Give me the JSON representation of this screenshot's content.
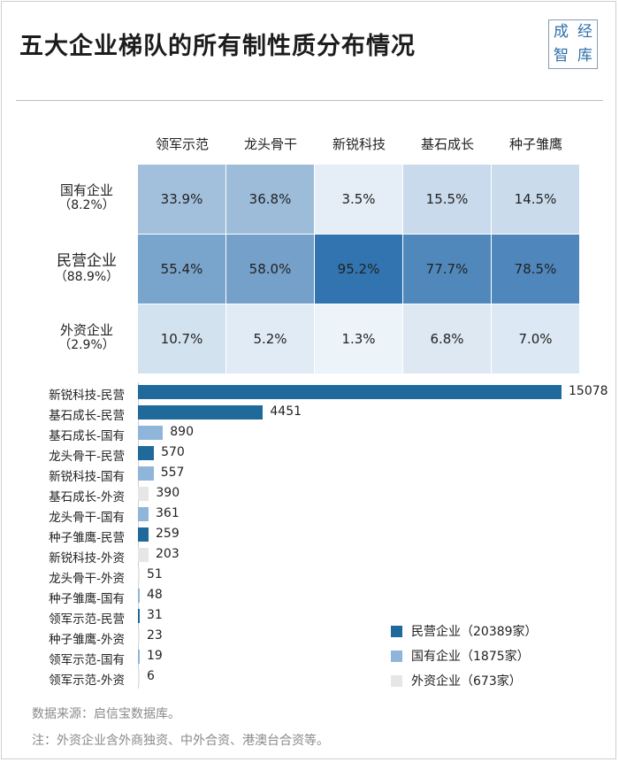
{
  "title": "五大企业梯队的所有制性质分布情况",
  "logo": {
    "chars": [
      "成",
      "经",
      "智",
      "库"
    ]
  },
  "colors": {
    "private": "#1f6a9a",
    "state": "#8fb6da",
    "foreign": "#e6e6e6",
    "heat_low": "#f1f6fb",
    "heat_high": "#2a6ead"
  },
  "chart_data": [
    {
      "type": "heatmap",
      "columns": [
        "领军示范",
        "龙头骨干",
        "新锐科技",
        "基石成长",
        "种子雏鹰"
      ],
      "rows": [
        {
          "name": "国有企业",
          "share": "（8.2%）",
          "values": [
            33.9,
            36.8,
            3.5,
            15.5,
            14.5
          ],
          "labels": [
            "33.9%",
            "36.8%",
            "3.5%",
            "15.5%",
            "14.5%"
          ]
        },
        {
          "name": "民营企业",
          "share": "（88.9%）",
          "values": [
            55.4,
            58.0,
            95.2,
            77.7,
            78.5
          ],
          "labels": [
            "55.4%",
            "58.0%",
            "95.2%",
            "77.7%",
            "78.5%"
          ]
        },
        {
          "name": "外资企业",
          "share": "（2.9%）",
          "values": [
            10.7,
            5.2,
            1.3,
            6.8,
            7.0
          ],
          "labels": [
            "10.7%",
            "5.2%",
            "1.3%",
            "6.8%",
            "7.0%"
          ]
        }
      ]
    },
    {
      "type": "bar",
      "orientation": "horizontal",
      "xlim": [
        0,
        15078
      ],
      "categories": [
        "新锐科技-民营",
        "基石成长-民营",
        "基石成长-国有",
        "龙头骨干-民营",
        "新锐科技-国有",
        "基石成长-外资",
        "龙头骨干-国有",
        "种子雏鹰-民营",
        "新锐科技-外资",
        "龙头骨干-外资",
        "种子雏鹰-国有",
        "领军示范-民营",
        "种子雏鹰-外资",
        "领军示范-国有",
        "领军示范-外资"
      ],
      "values": [
        15078,
        4451,
        890,
        570,
        557,
        390,
        361,
        259,
        203,
        51,
        48,
        31,
        23,
        19,
        6
      ],
      "value_labels": [
        "15078",
        "4451",
        "890",
        "570",
        "557",
        "390",
        "361",
        "259",
        "203",
        "51",
        "48",
        "31",
        "23",
        "19",
        "6"
      ],
      "groups": [
        "private",
        "private",
        "state",
        "private",
        "state",
        "foreign",
        "state",
        "private",
        "foreign",
        "foreign",
        "state",
        "private",
        "foreign",
        "state",
        "foreign"
      ],
      "legend": [
        {
          "key": "private",
          "label": "民营企业（20389家）"
        },
        {
          "key": "state",
          "label": "国有企业（1875家）"
        },
        {
          "key": "foreign",
          "label": "外资企业（673家）"
        }
      ]
    }
  ],
  "footer": {
    "source": "数据来源：启信宝数据库。",
    "note": "注：外资企业含外商独资、中外合资、港澳台合资等。"
  }
}
